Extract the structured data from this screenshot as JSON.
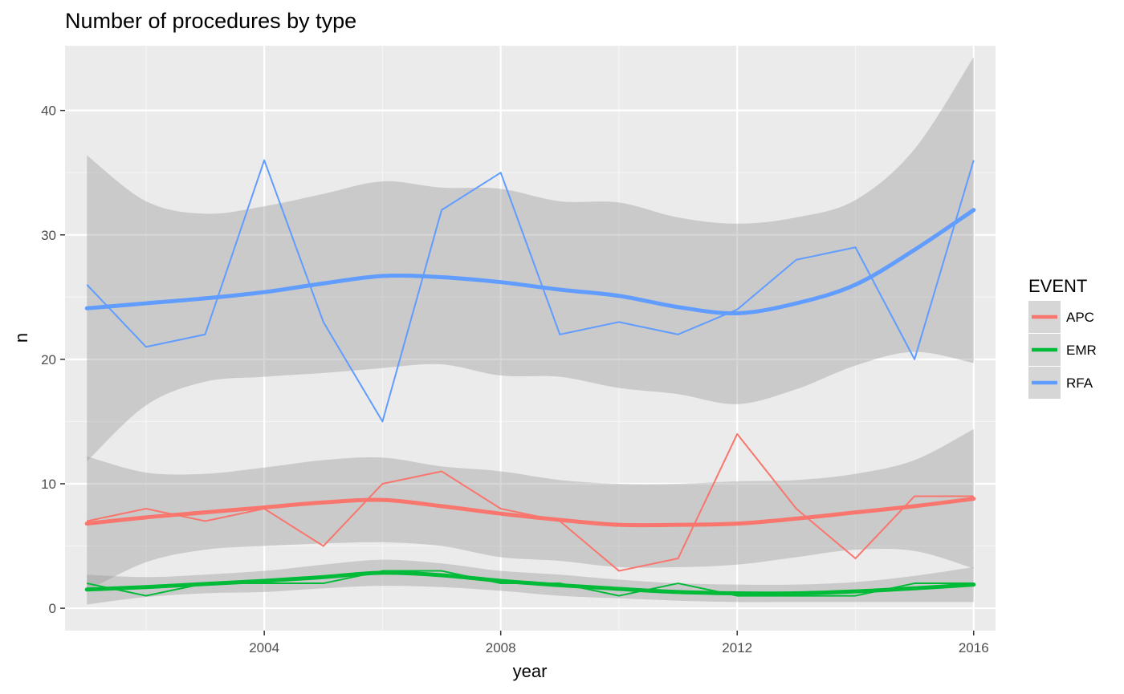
{
  "chart_data": {
    "type": "line",
    "title": "Number of procedures by type",
    "xlabel": "year",
    "ylabel": "n",
    "xlim": [
      2000.63,
      2016.37
    ],
    "ylim": [
      -1.8,
      45.2
    ],
    "x_ticks": [
      2004,
      2008,
      2012,
      2016
    ],
    "y_ticks": [
      0,
      10,
      20,
      30,
      40
    ],
    "x_minor": [
      2002,
      2006,
      2010,
      2014
    ],
    "y_minor": [
      5,
      15,
      25,
      35
    ],
    "grid": true,
    "legend": {
      "title": "EVENT",
      "position": "right",
      "entries": [
        "APC",
        "EMR",
        "RFA"
      ]
    },
    "colors": {
      "APC": "#F8766D",
      "EMR": "#00BA38",
      "RFA": "#619CFF",
      "band": "#999999",
      "panel": "#EBEBEB"
    },
    "x": [
      2001,
      2002,
      2003,
      2004,
      2005,
      2006,
      2007,
      2008,
      2009,
      2010,
      2011,
      2012,
      2013,
      2014,
      2015,
      2016
    ],
    "series": [
      {
        "name": "APC",
        "values": [
          7,
          8,
          7,
          8,
          5,
          10,
          11,
          8,
          7,
          3,
          4,
          14,
          8,
          4,
          9,
          9
        ],
        "smooth": [
          6.8,
          7.3,
          7.7,
          8.1,
          8.5,
          8.7,
          8.2,
          7.6,
          7.1,
          6.7,
          6.7,
          6.8,
          7.2,
          7.7,
          8.2,
          8.8
        ],
        "lower": [
          1.4,
          3.7,
          4.7,
          5.0,
          5.2,
          5.3,
          5.0,
          4.1,
          3.8,
          3.3,
          3.3,
          3.5,
          4.1,
          4.7,
          4.6,
          3.2
        ],
        "upper": [
          12.2,
          10.9,
          10.8,
          11.3,
          11.9,
          12.1,
          11.4,
          11.0,
          10.3,
          10.0,
          10.0,
          10.2,
          10.3,
          10.8,
          11.9,
          14.4
        ]
      },
      {
        "name": "EMR",
        "values": [
          2,
          1,
          2,
          2,
          2,
          3,
          3,
          2,
          2,
          1,
          2,
          1,
          1,
          1,
          2,
          2
        ],
        "smooth": [
          1.5,
          1.7,
          1.95,
          2.2,
          2.5,
          2.85,
          2.65,
          2.2,
          1.85,
          1.55,
          1.3,
          1.2,
          1.2,
          1.35,
          1.6,
          1.9
        ],
        "lower": [
          0.3,
          0.9,
          1.2,
          1.3,
          1.6,
          1.8,
          1.7,
          1.4,
          1.0,
          0.8,
          0.6,
          0.5,
          0.5,
          0.5,
          0.5,
          0.5
        ],
        "upper": [
          2.7,
          2.5,
          2.7,
          3.0,
          3.5,
          3.9,
          3.6,
          3.0,
          2.7,
          2.3,
          2.0,
          1.9,
          1.9,
          2.1,
          2.6,
          3.3
        ]
      },
      {
        "name": "RFA",
        "values": [
          26,
          21,
          22,
          36,
          23,
          15,
          32,
          35,
          22,
          23,
          22,
          24,
          28,
          29,
          20,
          36
        ],
        "smooth": [
          24.1,
          24.5,
          24.9,
          25.4,
          26.1,
          26.7,
          26.6,
          26.2,
          25.6,
          25.1,
          24.2,
          23.7,
          24.5,
          26.0,
          28.8,
          32.0
        ],
        "lower": [
          11.8,
          16.3,
          18.2,
          18.6,
          18.9,
          19.3,
          19.6,
          18.7,
          18.6,
          17.7,
          17.2,
          16.4,
          17.6,
          19.5,
          20.6,
          19.7
        ],
        "upper": [
          36.4,
          32.7,
          31.7,
          32.3,
          33.3,
          34.3,
          33.8,
          33.7,
          32.7,
          32.6,
          31.4,
          30.9,
          31.4,
          32.8,
          36.9,
          44.3
        ]
      }
    ]
  }
}
